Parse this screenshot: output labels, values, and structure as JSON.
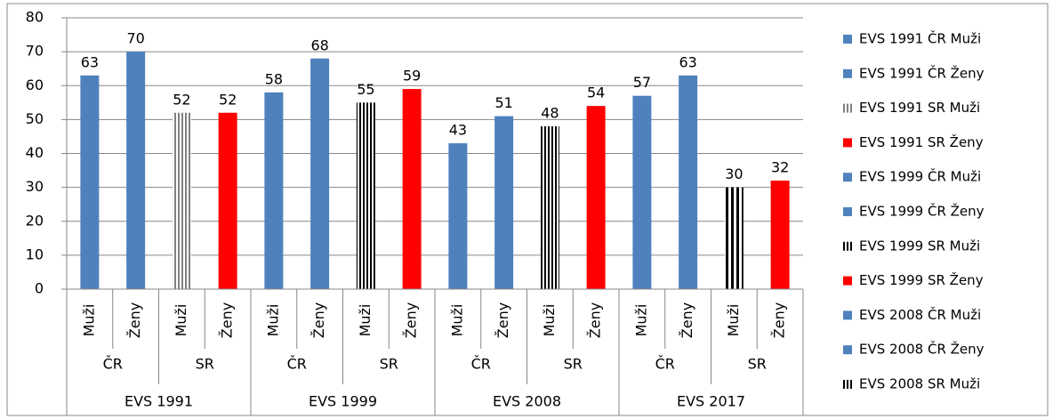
{
  "chart_data": {
    "type": "bar",
    "categories": [
      "Muži",
      "Ženy",
      "Muži",
      "Ženy",
      "Muži",
      "Ženy",
      "Muži",
      "Ženy",
      "Muži",
      "Ženy",
      "Muži",
      "Ženy",
      "Muži",
      "Ženy",
      "Muži",
      "Ženy"
    ],
    "subgroups": [
      "ČR",
      "SR",
      "ČR",
      "SR",
      "ČR",
      "SR",
      "ČR",
      "SR"
    ],
    "groups": [
      "EVS 1991",
      "EVS 1999",
      "EVS 2008",
      "EVS 2017"
    ],
    "values": [
      63,
      70,
      52,
      52,
      58,
      68,
      55,
      59,
      43,
      51,
      48,
      54,
      57,
      63,
      30,
      32
    ],
    "colors": [
      "#4f81bd",
      "#4f81bd",
      "stripes-gray",
      "#ff0000",
      "#4f81bd",
      "#4f81bd",
      "stripes-black",
      "#ff0000",
      "#4f81bd",
      "#4f81bd",
      "stripes-black",
      "#ff0000",
      "#4f81bd",
      "#4f81bd",
      "stripes-wide",
      "#ff0000"
    ],
    "ylim": [
      0,
      80
    ],
    "yticks": [
      0,
      10,
      20,
      30,
      40,
      50,
      60,
      70,
      80
    ],
    "grid": true,
    "legend_position": "right",
    "legend": [
      {
        "name": "EVS 1991 ČR Muži",
        "color": "#4f81bd"
      },
      {
        "name": "EVS 1991 ČR Ženy",
        "color": "#4f81bd"
      },
      {
        "name": "EVS 1991 SR Muži",
        "color": "stripes-gray"
      },
      {
        "name": "EVS 1991 SR Ženy",
        "color": "#ff0000"
      },
      {
        "name": "EVS 1999 ČR Muži",
        "color": "#4f81bd"
      },
      {
        "name": "EVS 1999 ČR Ženy",
        "color": "#4f81bd"
      },
      {
        "name": "EVS 1999 SR Muži",
        "color": "stripes-black"
      },
      {
        "name": "EVS 1999 SR Ženy",
        "color": "#ff0000"
      },
      {
        "name": "EVS 2008 ČR Muži",
        "color": "#4f81bd"
      },
      {
        "name": "EVS 2008 ČR Ženy",
        "color": "#4f81bd"
      },
      {
        "name": "EVS 2008 SR Muži",
        "color": "stripes-black"
      }
    ]
  }
}
